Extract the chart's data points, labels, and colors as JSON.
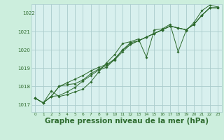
{
  "background_color": "#cceedd",
  "plot_bg_color": "#d8f0ee",
  "grid_color": "#aacccc",
  "line_color": "#2d6a2d",
  "marker_color": "#2d6a2d",
  "xlabel": "Graphe pression niveau de la mer (hPa)",
  "xlabel_fontsize": 7.5,
  "ylim": [
    1016.6,
    1022.5
  ],
  "xlim": [
    -0.5,
    23.5
  ],
  "yticks": [
    1017,
    1018,
    1019,
    1020,
    1021
  ],
  "xticks": [
    0,
    1,
    2,
    3,
    4,
    5,
    6,
    7,
    8,
    9,
    10,
    11,
    12,
    13,
    14,
    15,
    16,
    17,
    18,
    19,
    20,
    21,
    22,
    23
  ],
  "series": [
    [
      1017.35,
      1017.1,
      1017.75,
      1017.45,
      1017.55,
      1017.7,
      1017.85,
      1018.25,
      1018.8,
      1019.3,
      1019.75,
      1020.35,
      1020.45,
      1020.6,
      1019.6,
      1021.1,
      1021.15,
      1021.4,
      1019.9,
      1021.05,
      1021.5,
      1022.15,
      1022.45,
      1022.35
    ],
    [
      1017.35,
      1017.1,
      1017.45,
      1017.5,
      1017.7,
      1017.95,
      1018.3,
      1018.6,
      1018.9,
      1019.05,
      1019.5,
      1020.0,
      1020.4,
      1020.5,
      1020.7,
      1020.9,
      1021.1,
      1021.3,
      1021.2,
      1021.1,
      1021.4,
      1021.9,
      1022.3,
      1022.3
    ],
    [
      1017.35,
      1017.1,
      1017.45,
      1018.0,
      1018.1,
      1018.15,
      1018.35,
      1018.7,
      1018.95,
      1019.15,
      1019.45,
      1019.9,
      1020.3,
      1020.5,
      1020.7,
      1020.9,
      1021.1,
      1021.3,
      1021.2,
      1021.1,
      1021.4,
      1021.9,
      1022.3,
      1022.3
    ],
    [
      1017.35,
      1017.1,
      1017.45,
      1018.0,
      1018.2,
      1018.4,
      1018.6,
      1018.85,
      1019.05,
      1019.2,
      1019.5,
      1020.0,
      1020.3,
      1020.5,
      1020.7,
      1020.9,
      1021.1,
      1021.3,
      1021.2,
      1021.1,
      1021.4,
      1021.9,
      1022.3,
      1022.3
    ]
  ]
}
